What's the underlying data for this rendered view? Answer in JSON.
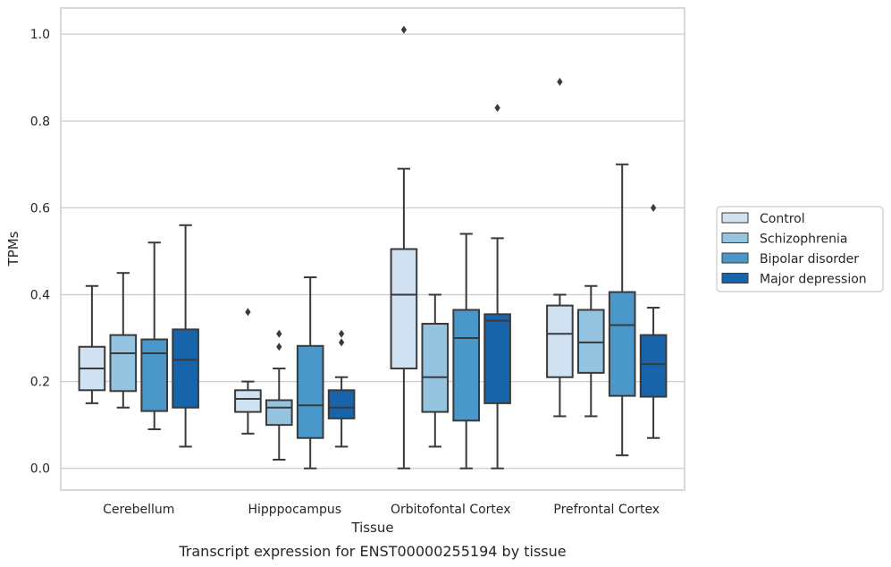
{
  "caption": "Transcript expression for ENST00000255194 by tissue",
  "chart_data": {
    "type": "box",
    "title": "",
    "xlabel": "Tissue",
    "ylabel": "TPMs",
    "ylim": [
      -0.05,
      1.06
    ],
    "yticks": [
      0.0,
      0.2,
      0.4,
      0.6,
      0.8,
      1.0
    ],
    "ytick_labels": [
      "0.0",
      "0.2",
      "0.4",
      "0.6",
      "0.8",
      "1.0"
    ],
    "grid": "horizontal",
    "legend_position": "right",
    "categories": [
      "Cerebellum",
      "Hipppocampus",
      "Orbitofontal Cortex",
      "Prefrontal Cortex"
    ],
    "series": [
      {
        "name": "Control",
        "color": "#d0e1f2",
        "boxes": [
          {
            "whislo": 0.15,
            "q1": 0.18,
            "med": 0.23,
            "q3": 0.28,
            "whishi": 0.42,
            "fliers": []
          },
          {
            "whislo": 0.08,
            "q1": 0.13,
            "med": 0.16,
            "q3": 0.18,
            "whishi": 0.2,
            "fliers": [
              0.36
            ]
          },
          {
            "whislo": 0.0,
            "q1": 0.23,
            "med": 0.4,
            "q3": 0.505,
            "whishi": 0.69,
            "fliers": [
              1.01
            ]
          },
          {
            "whislo": 0.12,
            "q1": 0.21,
            "med": 0.31,
            "q3": 0.375,
            "whishi": 0.4,
            "fliers": [
              0.89
            ]
          }
        ]
      },
      {
        "name": "Schizophrenia",
        "color": "#94c4df",
        "boxes": [
          {
            "whislo": 0.14,
            "q1": 0.178,
            "med": 0.265,
            "q3": 0.307,
            "whishi": 0.45,
            "fliers": []
          },
          {
            "whislo": 0.02,
            "q1": 0.1,
            "med": 0.14,
            "q3": 0.157,
            "whishi": 0.23,
            "fliers": [
              0.31,
              0.28
            ]
          },
          {
            "whislo": 0.05,
            "q1": 0.13,
            "med": 0.21,
            "q3": 0.333,
            "whishi": 0.4,
            "fliers": []
          },
          {
            "whislo": 0.12,
            "q1": 0.22,
            "med": 0.29,
            "q3": 0.365,
            "whishi": 0.42,
            "fliers": []
          }
        ]
      },
      {
        "name": "Bipolar disorder",
        "color": "#4a98c9",
        "boxes": [
          {
            "whislo": 0.09,
            "q1": 0.132,
            "med": 0.265,
            "q3": 0.297,
            "whishi": 0.52,
            "fliers": []
          },
          {
            "whislo": 0.0,
            "q1": 0.07,
            "med": 0.145,
            "q3": 0.282,
            "whishi": 0.44,
            "fliers": []
          },
          {
            "whislo": 0.0,
            "q1": 0.11,
            "med": 0.3,
            "q3": 0.365,
            "whishi": 0.54,
            "fliers": []
          },
          {
            "whislo": 0.03,
            "q1": 0.167,
            "med": 0.33,
            "q3": 0.406,
            "whishi": 0.7,
            "fliers": []
          }
        ]
      },
      {
        "name": "Major depression",
        "color": "#1764ab",
        "boxes": [
          {
            "whislo": 0.05,
            "q1": 0.14,
            "med": 0.25,
            "q3": 0.32,
            "whishi": 0.56,
            "fliers": []
          },
          {
            "whislo": 0.05,
            "q1": 0.115,
            "med": 0.14,
            "q3": 0.18,
            "whishi": 0.21,
            "fliers": [
              0.31,
              0.29
            ]
          },
          {
            "whislo": 0.0,
            "q1": 0.15,
            "med": 0.34,
            "q3": 0.355,
            "whishi": 0.53,
            "fliers": [
              0.83
            ]
          },
          {
            "whislo": 0.07,
            "q1": 0.165,
            "med": 0.24,
            "q3": 0.307,
            "whishi": 0.37,
            "fliers": [
              0.6
            ]
          }
        ]
      }
    ],
    "colors": {
      "axes_edge": "#cccccc",
      "grid": "#cccccc",
      "box_line": "#3a3a3a",
      "text": "#262626"
    }
  }
}
